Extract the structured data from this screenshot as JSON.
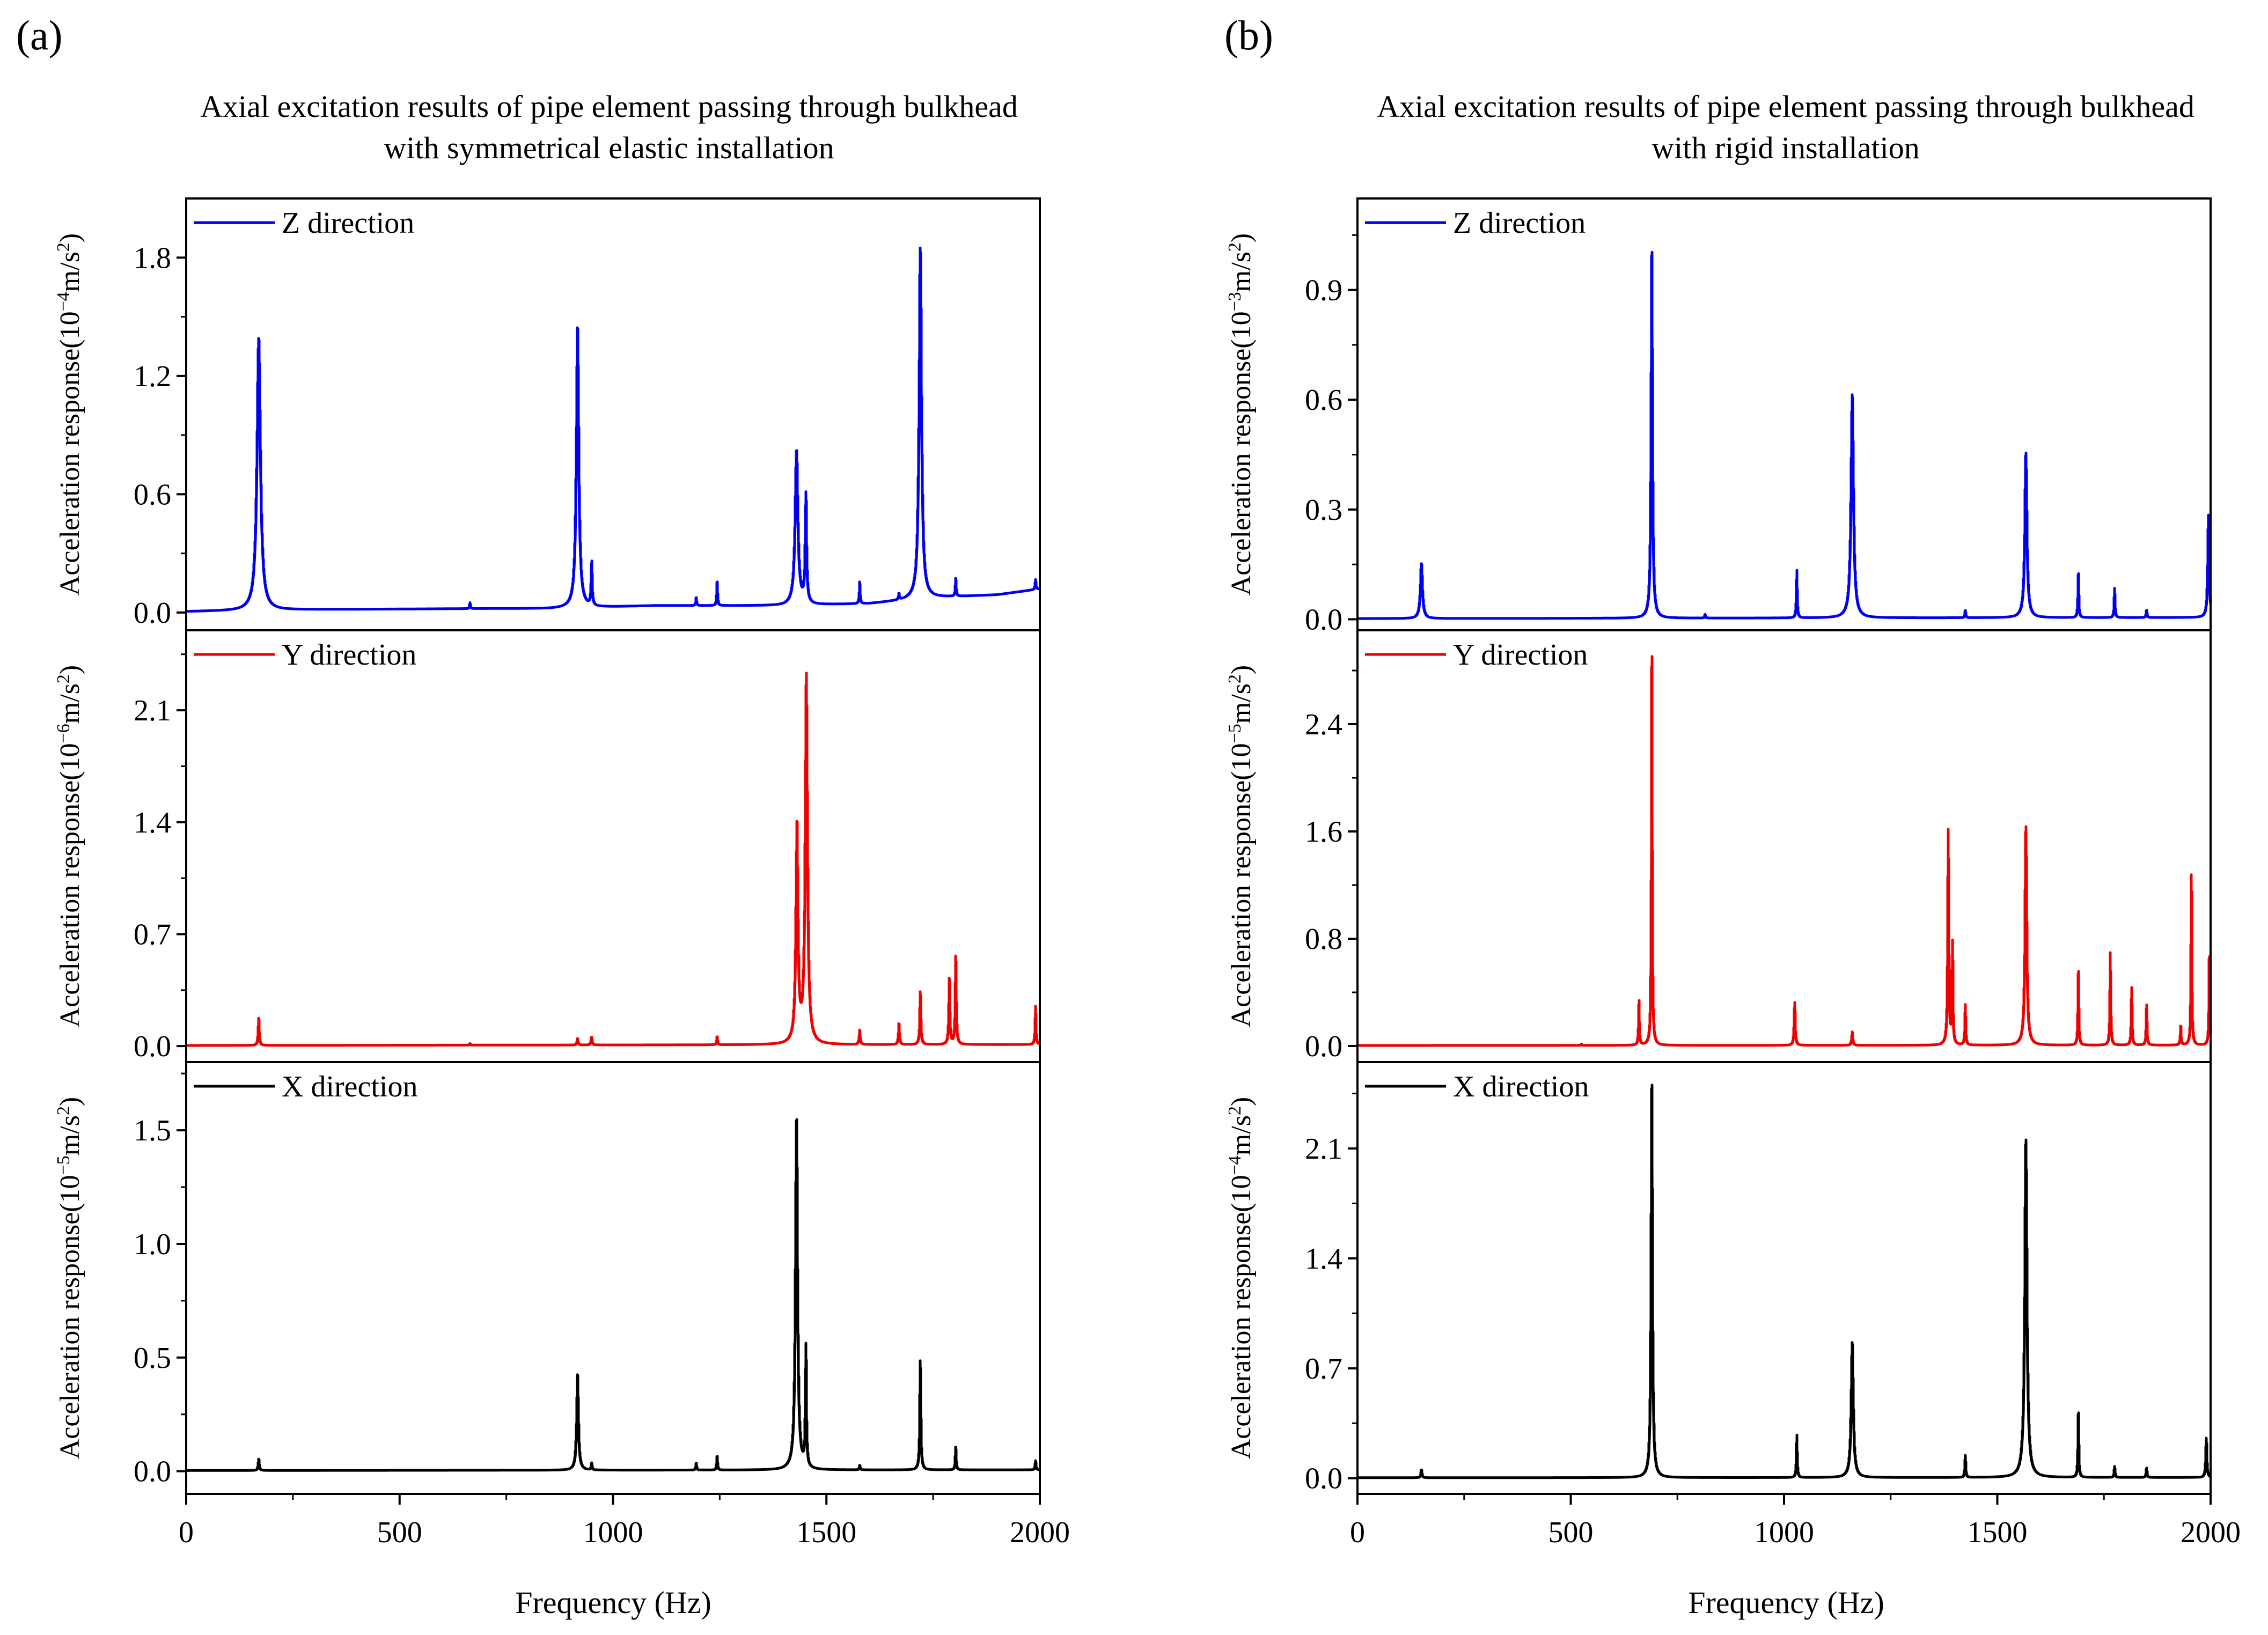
{
  "figure": {
    "panel_a_label": "(a)",
    "panel_b_label": "(b)",
    "panel_a_title_line1": "Axial excitation results of  pipe element passing through bulkhead",
    "panel_a_title_line2": "with symmetrical elastic installation",
    "panel_b_title_line1": "Axial excitation results of pipe element passing through bulkhead",
    "panel_b_title_line2": "with rigid installation",
    "xlabel": "Frequency (Hz)",
    "x_ticks": [
      0,
      500,
      1000,
      1500,
      2000
    ],
    "x_range": [
      0,
      2000
    ],
    "colors": {
      "Z": "#0000ee",
      "Y": "#ee0000",
      "X": "#000000",
      "axis": "#000000"
    }
  },
  "chart_data": [
    {
      "type": "line",
      "panel": "a",
      "name": "Z direction",
      "legend": "Z direction",
      "ylabel_prefix": "Acceleration response(10",
      "ylabel_exp": "−4",
      "ylabel_unit": "m/s",
      "ylabel_sq": "2",
      "ylabel_close": ")",
      "ylim": [
        -0.09,
        2.1
      ],
      "yticks": [
        0.0,
        0.6,
        1.2,
        1.8
      ],
      "tick_decimals": 1,
      "baseline": [
        [
          0,
          0.005
        ],
        [
          300,
          0.015
        ],
        [
          700,
          0.02
        ],
        [
          850,
          0.02
        ],
        [
          1100,
          0.035
        ],
        [
          1400,
          0.035
        ],
        [
          1600,
          0.045
        ],
        [
          1750,
          0.075
        ],
        [
          1900,
          0.09
        ],
        [
          2000,
          0.12
        ]
      ],
      "peaks": [
        {
          "f": 170,
          "a": 1.38,
          "w": 5
        },
        {
          "f": 665,
          "a": 0.03,
          "w": 1.2
        },
        {
          "f": 917,
          "a": 1.42,
          "w": 3.5
        },
        {
          "f": 950,
          "a": 0.22,
          "w": 1.5
        },
        {
          "f": 1195,
          "a": 0.04,
          "w": 1.2
        },
        {
          "f": 1244,
          "a": 0.12,
          "w": 1.2
        },
        {
          "f": 1430,
          "a": 0.78,
          "w": 4
        },
        {
          "f": 1452,
          "a": 0.55,
          "w": 2
        },
        {
          "f": 1578,
          "a": 0.11,
          "w": 1.2
        },
        {
          "f": 1670,
          "a": 0.03,
          "w": 1.2
        },
        {
          "f": 1720,
          "a": 1.78,
          "w": 3.5
        },
        {
          "f": 1803,
          "a": 0.09,
          "w": 1.2
        },
        {
          "f": 1990,
          "a": 0.05,
          "w": 1.2
        }
      ]
    },
    {
      "type": "line",
      "panel": "a",
      "name": "Y direction",
      "legend": "Y direction",
      "ylabel_prefix": "Acceleration response(10",
      "ylabel_exp": "−6",
      "ylabel_unit": "m/s",
      "ylabel_sq": "2",
      "ylabel_close": ")",
      "ylim": [
        -0.1,
        2.6
      ],
      "yticks": [
        0.0,
        0.7,
        1.4,
        2.1
      ],
      "tick_decimals": 1,
      "baseline": [
        [
          0,
          0.004
        ],
        [
          2000,
          0.01
        ]
      ],
      "peaks": [
        {
          "f": 170,
          "a": 0.17,
          "w": 1.5
        },
        {
          "f": 665,
          "a": 0.01,
          "w": 1.2
        },
        {
          "f": 917,
          "a": 0.04,
          "w": 1.5
        },
        {
          "f": 950,
          "a": 0.05,
          "w": 1.5
        },
        {
          "f": 1244,
          "a": 0.05,
          "w": 1.2
        },
        {
          "f": 1431,
          "a": 1.35,
          "w": 3
        },
        {
          "f": 1453,
          "a": 2.3,
          "w": 3.2
        },
        {
          "f": 1578,
          "a": 0.09,
          "w": 1.5
        },
        {
          "f": 1670,
          "a": 0.13,
          "w": 1.5
        },
        {
          "f": 1720,
          "a": 0.33,
          "w": 1.5
        },
        {
          "f": 1788,
          "a": 0.41,
          "w": 1.5
        },
        {
          "f": 1803,
          "a": 0.55,
          "w": 1.5
        },
        {
          "f": 1990,
          "a": 0.24,
          "w": 1.2
        }
      ]
    },
    {
      "type": "line",
      "panel": "a",
      "name": "X direction",
      "legend": "X direction",
      "ylabel_prefix": "Acceleration response(10",
      "ylabel_exp": "−5",
      "ylabel_unit": "m/s",
      "ylabel_sq": "2",
      "ylabel_close": ")",
      "ylim": [
        -0.1,
        1.8
      ],
      "yticks": [
        0.0,
        0.5,
        1.0,
        1.5
      ],
      "tick_decimals": 1,
      "baseline": [
        [
          0,
          0.003
        ],
        [
          2000,
          0.006
        ]
      ],
      "peaks": [
        {
          "f": 170,
          "a": 0.05,
          "w": 1.5
        },
        {
          "f": 917,
          "a": 0.42,
          "w": 2.5
        },
        {
          "f": 950,
          "a": 0.03,
          "w": 1.2
        },
        {
          "f": 1195,
          "a": 0.03,
          "w": 1.2
        },
        {
          "f": 1244,
          "a": 0.06,
          "w": 1.2
        },
        {
          "f": 1430,
          "a": 1.54,
          "w": 3
        },
        {
          "f": 1452,
          "a": 0.53,
          "w": 1.5
        },
        {
          "f": 1578,
          "a": 0.02,
          "w": 1.2
        },
        {
          "f": 1720,
          "a": 0.48,
          "w": 1.5
        },
        {
          "f": 1803,
          "a": 0.1,
          "w": 1.2
        },
        {
          "f": 1990,
          "a": 0.04,
          "w": 1.2
        }
      ]
    },
    {
      "type": "line",
      "panel": "b",
      "name": "Z direction",
      "legend": "Z direction",
      "ylabel_prefix": "Acceleration response(10",
      "ylabel_exp": "−3",
      "ylabel_unit": "m/s",
      "ylabel_sq": "2",
      "ylabel_close": ")",
      "ylim": [
        -0.03,
        1.15
      ],
      "yticks": [
        0.0,
        0.3,
        0.6,
        0.9
      ],
      "tick_decimals": 1,
      "baseline": [
        [
          0,
          0.002
        ],
        [
          2000,
          0.005
        ]
      ],
      "peaks": [
        {
          "f": 150,
          "a": 0.15,
          "w": 3
        },
        {
          "f": 690,
          "a": 1.0,
          "w": 2
        },
        {
          "f": 815,
          "a": 0.01,
          "w": 1.2
        },
        {
          "f": 1030,
          "a": 0.13,
          "w": 1.2
        },
        {
          "f": 1160,
          "a": 0.61,
          "w": 3.5
        },
        {
          "f": 1425,
          "a": 0.02,
          "w": 1.2
        },
        {
          "f": 1567,
          "a": 0.45,
          "w": 3
        },
        {
          "f": 1690,
          "a": 0.12,
          "w": 1.2
        },
        {
          "f": 1775,
          "a": 0.08,
          "w": 1.2
        },
        {
          "f": 1850,
          "a": 0.02,
          "w": 1.2
        },
        {
          "f": 1995,
          "a": 0.28,
          "w": 2
        }
      ]
    },
    {
      "type": "line",
      "panel": "b",
      "name": "Y direction",
      "legend": "Y direction",
      "ylabel_prefix": "Acceleration response(10",
      "ylabel_exp": "−5",
      "ylabel_unit": "m/s",
      "ylabel_sq": "2",
      "ylabel_close": ")",
      "ylim": [
        -0.12,
        3.1
      ],
      "yticks": [
        0.0,
        0.8,
        1.6,
        2.4
      ],
      "tick_decimals": 1,
      "baseline": [
        [
          0,
          0.004
        ],
        [
          2000,
          0.006
        ]
      ],
      "peaks": [
        {
          "f": 525,
          "a": 0.01,
          "w": 1.2
        },
        {
          "f": 660,
          "a": 0.33,
          "w": 1.2
        },
        {
          "f": 690,
          "a": 2.9,
          "w": 1.2
        },
        {
          "f": 1025,
          "a": 0.32,
          "w": 1.5
        },
        {
          "f": 1160,
          "a": 0.1,
          "w": 1.5
        },
        {
          "f": 1385,
          "a": 1.6,
          "w": 1.5
        },
        {
          "f": 1395,
          "a": 0.75,
          "w": 1.2
        },
        {
          "f": 1425,
          "a": 0.3,
          "w": 1.2
        },
        {
          "f": 1567,
          "a": 1.63,
          "w": 2.5
        },
        {
          "f": 1690,
          "a": 0.55,
          "w": 1.2
        },
        {
          "f": 1765,
          "a": 0.69,
          "w": 1.2
        },
        {
          "f": 1815,
          "a": 0.43,
          "w": 1.2
        },
        {
          "f": 1850,
          "a": 0.3,
          "w": 1.2
        },
        {
          "f": 1930,
          "a": 0.14,
          "w": 1.2
        },
        {
          "f": 1955,
          "a": 1.27,
          "w": 1.2
        },
        {
          "f": 1997,
          "a": 0.66,
          "w": 1.2
        }
      ]
    },
    {
      "type": "line",
      "panel": "b",
      "name": "X direction",
      "legend": "X direction",
      "ylabel_prefix": "Acceleration response(10",
      "ylabel_exp": "−4",
      "ylabel_unit": "m/s",
      "ylabel_sq": "2",
      "ylabel_close": ")",
      "ylim": [
        -0.1,
        2.65
      ],
      "yticks": [
        0.0,
        0.7,
        1.4,
        2.1
      ],
      "tick_decimals": 1,
      "baseline": [
        [
          0,
          0.003
        ],
        [
          2000,
          0.005
        ]
      ],
      "peaks": [
        {
          "f": 150,
          "a": 0.05,
          "w": 1.5
        },
        {
          "f": 690,
          "a": 2.5,
          "w": 2
        },
        {
          "f": 1030,
          "a": 0.27,
          "w": 1.2
        },
        {
          "f": 1160,
          "a": 0.86,
          "w": 3
        },
        {
          "f": 1425,
          "a": 0.14,
          "w": 1.2
        },
        {
          "f": 1567,
          "a": 2.15,
          "w": 3.2
        },
        {
          "f": 1690,
          "a": 0.41,
          "w": 1.2
        },
        {
          "f": 1775,
          "a": 0.07,
          "w": 1.2
        },
        {
          "f": 1850,
          "a": 0.06,
          "w": 1.2
        },
        {
          "f": 1990,
          "a": 0.25,
          "w": 1.5
        }
      ]
    }
  ]
}
